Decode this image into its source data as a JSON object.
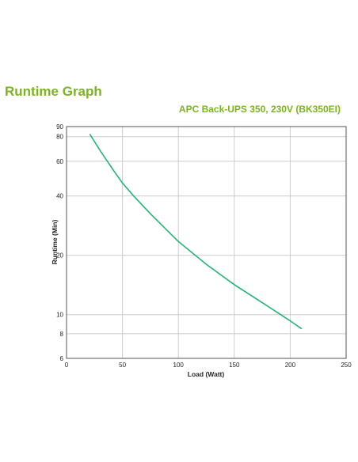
{
  "page": {
    "title": "Runtime Graph"
  },
  "chart_data": {
    "type": "line",
    "title": "APC Back-UPS 350, 230V (BK350EI)",
    "xlabel": "Load (Watt)",
    "ylabel": "Runtime (Min)",
    "xlim": [
      0,
      250
    ],
    "ylim": [
      6,
      90
    ],
    "yscale": "log",
    "grid": true,
    "xticks": [
      "0",
      "50",
      "100",
      "150",
      "200",
      "250"
    ],
    "yticks": [
      "6",
      "8",
      "10",
      "20",
      "40",
      "60",
      "80",
      "90"
    ],
    "ytick_values": [
      6,
      8,
      10,
      20,
      40,
      60,
      80,
      90
    ],
    "line_color": "#22b573",
    "title_color": "#7ab51d",
    "series": [
      {
        "x": [
          21,
          30,
          40,
          50,
          60,
          75,
          100,
          125,
          150,
          175,
          200,
          210
        ],
        "values": [
          82,
          68,
          56,
          46.5,
          40,
          32.5,
          23.5,
          18,
          14.2,
          11.5,
          9.3,
          8.5
        ]
      }
    ]
  }
}
